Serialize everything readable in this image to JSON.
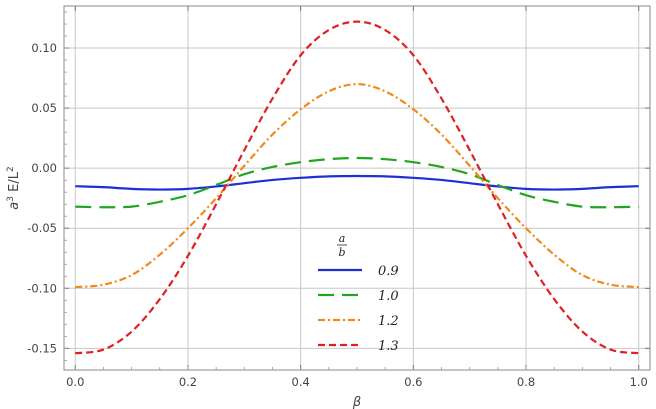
{
  "chart_data": {
    "type": "line",
    "title": "",
    "xlabel": "β",
    "ylabel_base": "a",
    "ylabel_exp1": "3",
    "ylabel_mid": " E/L",
    "ylabel_exp2": "2",
    "xlim": [
      -0.02,
      1.02
    ],
    "ylim": [
      -0.168,
      0.135
    ],
    "grid": true,
    "x_ticks": [
      0.0,
      0.2,
      0.4,
      0.6,
      0.8,
      1.0
    ],
    "x_tick_labels": [
      "0.0",
      "0.2",
      "0.4",
      "0.6",
      "0.8",
      "1.0"
    ],
    "y_ticks": [
      -0.15,
      -0.1,
      -0.05,
      0.0,
      0.05,
      0.1
    ],
    "y_tick_labels": [
      "-0.15",
      "-0.10",
      "-0.05",
      "0.00",
      "0.05",
      "0.10"
    ],
    "legend": {
      "position": "bottom-center",
      "title_num": "a",
      "title_den": "b"
    },
    "x": [
      0.0,
      0.05,
      0.1,
      0.15,
      0.2,
      0.25,
      0.3,
      0.35,
      0.4,
      0.45,
      0.5,
      0.55,
      0.6,
      0.65,
      0.7,
      0.75,
      0.8,
      0.85,
      0.9,
      0.95,
      1.0
    ],
    "series": [
      {
        "name": "0.9",
        "color": "#1f2fd6",
        "dash": "solid",
        "values": [
          -0.015,
          -0.0158,
          -0.0172,
          -0.0178,
          -0.0172,
          -0.0152,
          -0.0125,
          -0.0098,
          -0.008,
          -0.0068,
          -0.0065,
          -0.0068,
          -0.008,
          -0.0098,
          -0.0125,
          -0.0152,
          -0.0172,
          -0.0178,
          -0.0172,
          -0.0158,
          -0.015
        ]
      },
      {
        "name": "1.0",
        "color": "#22a51f",
        "dash": "long-dash",
        "values": [
          -0.032,
          -0.0325,
          -0.032,
          -0.028,
          -0.0225,
          -0.014,
          -0.005,
          0.001,
          0.005,
          0.0075,
          0.0085,
          0.0075,
          0.005,
          0.001,
          -0.005,
          -0.014,
          -0.0225,
          -0.028,
          -0.032,
          -0.0325,
          -0.032
        ]
      },
      {
        "name": "1.2",
        "color": "#f08a1c",
        "dash": "dash-dot",
        "values": [
          -0.099,
          -0.097,
          -0.089,
          -0.072,
          -0.05,
          -0.025,
          0.002,
          0.028,
          0.049,
          0.064,
          0.07,
          0.064,
          0.049,
          0.028,
          0.002,
          -0.025,
          -0.05,
          -0.072,
          -0.089,
          -0.097,
          -0.099
        ]
      },
      {
        "name": "1.3",
        "color": "#e02020",
        "dash": "short-dash",
        "values": [
          -0.154,
          -0.151,
          -0.136,
          -0.109,
          -0.073,
          -0.03,
          0.015,
          0.058,
          0.094,
          0.115,
          0.122,
          0.115,
          0.094,
          0.058,
          0.015,
          -0.03,
          -0.073,
          -0.109,
          -0.136,
          -0.151,
          -0.154
        ]
      }
    ]
  }
}
